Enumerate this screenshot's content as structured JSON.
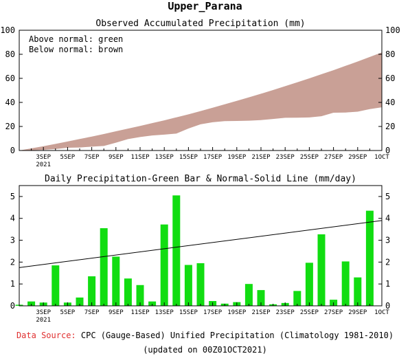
{
  "title": "Upper_Parana",
  "footer": {
    "source_label": "Data Source:",
    "source_text": "CPC (Gauge-Based) Unified Precipitation (Climatology 1981-2010)",
    "updated": "(updated on 00Z01OCT2021)"
  },
  "colors": {
    "accumulated_below_normal": "#c9a096",
    "daily_bar": "#11dd11",
    "normal_line": "#000000",
    "source_label": "#e03030"
  },
  "x_tick_labels": [
    "3SEP",
    "5SEP",
    "7SEP",
    "9SEP",
    "11SEP",
    "13SEP",
    "15SEP",
    "17SEP",
    "19SEP",
    "21SEP",
    "23SEP",
    "25SEP",
    "27SEP",
    "29SEP",
    "1OCT"
  ],
  "x_year_label": "2021",
  "chart_data": [
    {
      "type": "area",
      "title": "Observed Accumulated Precipitation (mm)",
      "legend": [
        "Above normal: green",
        "Below normal: brown"
      ],
      "days": [
        1,
        2,
        3,
        4,
        5,
        6,
        7,
        8,
        9,
        10,
        11,
        12,
        13,
        14,
        15,
        16,
        17,
        18,
        19,
        20,
        21,
        22,
        23,
        24,
        25,
        26,
        27,
        28,
        29,
        30,
        31
      ],
      "normal": [
        0,
        1.8,
        3.6,
        5.5,
        7.5,
        9.6,
        11.6,
        13.7,
        16.0,
        18.2,
        20.4,
        22.8,
        25.1,
        27.6,
        30.1,
        32.8,
        35.6,
        38.4,
        41.3,
        44.2,
        47.2,
        50.3,
        53.5,
        56.7,
        60.0,
        63.4,
        66.8,
        70.4,
        74.0,
        77.8,
        81.6
      ],
      "observed": [
        0,
        0.2,
        0.6,
        1.2,
        2.3,
        2.5,
        3.2,
        3.8,
        6.5,
        9.5,
        11.2,
        12.5,
        13.2,
        14.1,
        18.3,
        21.8,
        23.5,
        24.4,
        24.6,
        24.8,
        25.3,
        26.2,
        27.2,
        27.3,
        27.5,
        28.5,
        31.4,
        31.6,
        32.3,
        34.4,
        35.9
      ],
      "ylim": [
        0,
        100
      ],
      "yticks": [
        0,
        20,
        40,
        60,
        80,
        100
      ]
    },
    {
      "type": "bar",
      "title": "Daily Precipitation-Green Bar & Normal-Solid Line (mm/day)",
      "days": [
        1,
        2,
        3,
        4,
        5,
        6,
        7,
        8,
        9,
        10,
        11,
        12,
        13,
        14,
        15,
        16,
        17,
        18,
        19,
        20,
        21,
        22,
        23,
        24,
        25,
        26,
        27,
        28,
        29,
        30,
        31
      ],
      "values": [
        0.05,
        0.2,
        0.15,
        1.85,
        0.15,
        0.38,
        1.35,
        3.55,
        2.25,
        1.25,
        0.95,
        0.2,
        3.72,
        5.05,
        1.87,
        1.95,
        0.22,
        0.1,
        0.17,
        1.0,
        0.72,
        0.07,
        0.13,
        0.68,
        1.97,
        3.27,
        0.28,
        2.03,
        1.3,
        4.35,
        0.0
      ],
      "normal_line": {
        "start": 1.75,
        "end": 3.9
      },
      "ylim": [
        0,
        5.5
      ],
      "yticks": [
        0,
        1,
        2,
        3,
        4,
        5
      ]
    }
  ]
}
